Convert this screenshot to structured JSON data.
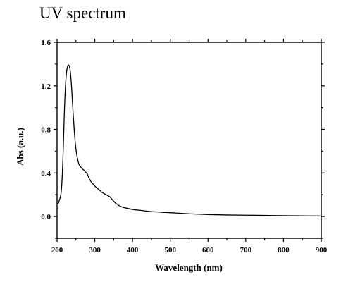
{
  "chart_data": {
    "type": "line",
    "title": "UV spectrum",
    "xlabel": "Wavelength (nm)",
    "ylabel": "Abs (a.u.)",
    "xlim": [
      200,
      900
    ],
    "ylim": [
      -0.2,
      1.6
    ],
    "xticks": [
      200,
      300,
      400,
      500,
      600,
      700,
      800,
      900
    ],
    "yticks": [
      0.0,
      0.4,
      0.8,
      1.2,
      1.6
    ],
    "ytick_labels": [
      "0.0",
      "0.4",
      "0.8",
      "1.2",
      "1.6"
    ],
    "grid": false,
    "line_color": "#000000",
    "series": [
      {
        "x": [
          200,
          203,
          206,
          210,
          213,
          216,
          219,
          222,
          225,
          228,
          231,
          234,
          237,
          240,
          243,
          246,
          249,
          252,
          255,
          258,
          262,
          266,
          270,
          275,
          280,
          285,
          290,
          295,
          300,
          310,
          320,
          330,
          340,
          350,
          360,
          370,
          380,
          400,
          425,
          450,
          500,
          550,
          600,
          650,
          700,
          750,
          800,
          850,
          900
        ],
        "values": [
          0.12,
          0.12,
          0.15,
          0.2,
          0.32,
          0.58,
          0.92,
          1.18,
          1.32,
          1.38,
          1.39,
          1.36,
          1.26,
          1.1,
          0.92,
          0.77,
          0.65,
          0.57,
          0.52,
          0.48,
          0.46,
          0.44,
          0.43,
          0.41,
          0.39,
          0.35,
          0.32,
          0.3,
          0.28,
          0.25,
          0.22,
          0.2,
          0.18,
          0.14,
          0.11,
          0.09,
          0.08,
          0.065,
          0.055,
          0.045,
          0.035,
          0.025,
          0.018,
          0.014,
          0.012,
          0.01,
          0.008,
          0.006,
          0.005
        ]
      }
    ]
  }
}
